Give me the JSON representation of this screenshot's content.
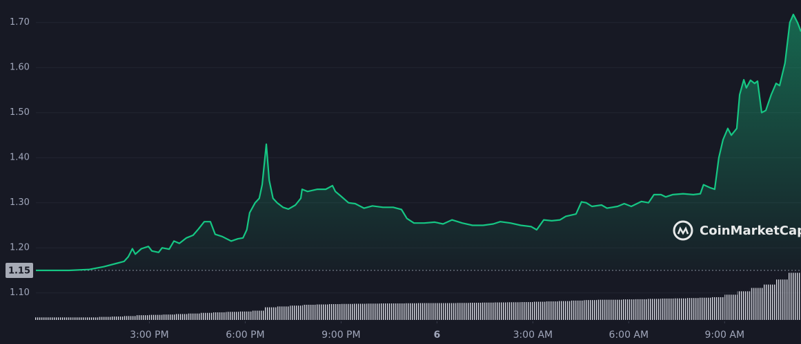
{
  "chart_data": {
    "type": "line",
    "watermark": "CoinMarketCap",
    "color": "#16c784",
    "grid": true,
    "reference": 1.15,
    "xlim": [
      11.45,
      35.39
    ],
    "ylim": [
      1.04,
      1.75
    ],
    "y2lim": [
      0,
      190
    ],
    "yticks": [
      {
        "value": 1.1,
        "label": "1.10"
      },
      {
        "value": 1.2,
        "label": "1.20"
      },
      {
        "value": 1.3,
        "label": "1.30"
      },
      {
        "value": 1.4,
        "label": "1.40"
      },
      {
        "value": 1.5,
        "label": "1.50"
      },
      {
        "value": 1.6,
        "label": "1.60"
      },
      {
        "value": 1.7,
        "label": "1.70"
      }
    ],
    "xticks": [
      {
        "value": 15,
        "label": "3:00 PM"
      },
      {
        "value": 18,
        "label": "6:00 PM"
      },
      {
        "value": 21,
        "label": "9:00 PM"
      },
      {
        "value": 24,
        "label": "6"
      },
      {
        "value": 27,
        "label": "3:00 AM"
      },
      {
        "value": 30,
        "label": "6:00 AM"
      },
      {
        "value": 33,
        "label": "9:00 AM"
      }
    ],
    "price": {
      "x": [
        11.45,
        12.49,
        13.13,
        13.57,
        14.0,
        14.21,
        14.34,
        14.47,
        14.56,
        14.75,
        14.97,
        15.08,
        15.29,
        15.4,
        15.62,
        15.77,
        15.94,
        16.16,
        16.37,
        16.54,
        16.72,
        16.91,
        17.06,
        17.28,
        17.56,
        17.77,
        17.93,
        18.05,
        18.14,
        18.31,
        18.44,
        18.53,
        18.66,
        18.75,
        18.87,
        19.0,
        19.18,
        19.35,
        19.57,
        19.74,
        19.78,
        19.95,
        20.26,
        20.52,
        20.73,
        20.82,
        20.99,
        21.23,
        21.44,
        21.72,
        21.98,
        22.31,
        22.63,
        22.89,
        23.06,
        23.28,
        23.6,
        23.93,
        24.19,
        24.47,
        24.79,
        25.11,
        25.44,
        25.76,
        25.98,
        26.3,
        26.62,
        26.95,
        27.12,
        27.34,
        27.59,
        27.85,
        28.03,
        28.35,
        28.52,
        28.67,
        28.85,
        29.15,
        29.32,
        29.65,
        29.86,
        30.08,
        30.4,
        30.62,
        30.79,
        31.01,
        31.16,
        31.37,
        31.7,
        32.02,
        32.24,
        32.34,
        32.56,
        32.69,
        32.82,
        32.95,
        33.1,
        33.21,
        33.38,
        33.47,
        33.6,
        33.68,
        33.81,
        33.94,
        34.03,
        34.16,
        34.29,
        34.46,
        34.61,
        34.72,
        34.89,
        35.04,
        35.15,
        35.28,
        35.39
      ],
      "values": [
        1.15,
        1.15,
        1.152,
        1.158,
        1.166,
        1.17,
        1.18,
        1.198,
        1.186,
        1.198,
        1.203,
        1.193,
        1.19,
        1.2,
        1.197,
        1.215,
        1.21,
        1.222,
        1.228,
        1.242,
        1.258,
        1.258,
        1.23,
        1.225,
        1.215,
        1.22,
        1.222,
        1.24,
        1.278,
        1.3,
        1.31,
        1.34,
        1.43,
        1.35,
        1.31,
        1.3,
        1.29,
        1.286,
        1.295,
        1.31,
        1.33,
        1.325,
        1.33,
        1.33,
        1.338,
        1.325,
        1.315,
        1.3,
        1.298,
        1.288,
        1.293,
        1.29,
        1.29,
        1.285,
        1.265,
        1.255,
        1.255,
        1.257,
        1.253,
        1.262,
        1.255,
        1.25,
        1.25,
        1.253,
        1.258,
        1.255,
        1.25,
        1.247,
        1.24,
        1.262,
        1.26,
        1.262,
        1.27,
        1.275,
        1.302,
        1.3,
        1.292,
        1.295,
        1.288,
        1.292,
        1.298,
        1.292,
        1.303,
        1.3,
        1.318,
        1.318,
        1.313,
        1.318,
        1.32,
        1.318,
        1.32,
        1.34,
        1.333,
        1.33,
        1.4,
        1.44,
        1.465,
        1.45,
        1.465,
        1.54,
        1.573,
        1.555,
        1.572,
        1.565,
        1.57,
        1.5,
        1.505,
        1.54,
        1.565,
        1.56,
        1.61,
        1.7,
        1.718,
        1.7,
        1.68
      ]
    },
    "volume": {
      "axis": "y2",
      "x": [
        11.6,
        12.0,
        12.4,
        12.8,
        13.2,
        13.6,
        14.0,
        14.4,
        14.8,
        15.2,
        15.6,
        16.0,
        16.4,
        16.8,
        17.2,
        17.6,
        18.0,
        18.4,
        18.8,
        19.2,
        19.6,
        20.0,
        20.4,
        20.8,
        21.2,
        21.6,
        22.0,
        22.4,
        22.8,
        23.2,
        23.6,
        24.0,
        24.4,
        24.8,
        25.2,
        25.6,
        26.0,
        26.4,
        26.8,
        27.2,
        27.6,
        28.0,
        28.4,
        28.8,
        29.2,
        29.6,
        30.0,
        30.4,
        30.8,
        31.2,
        31.6,
        32.0,
        32.4,
        32.8,
        33.2,
        33.6,
        34.0,
        34.4,
        34.8,
        35.2
      ],
      "values": [
        1.5,
        1.5,
        1.5,
        1.5,
        1.5,
        1.8,
        2,
        2.3,
        2.8,
        3,
        3.2,
        3.5,
        3.8,
        4.2,
        4.5,
        4.8,
        5,
        5.5,
        7.5,
        8,
        8.5,
        9,
        9.2,
        9.4,
        9.5,
        9.6,
        9.7,
        9.8,
        9.8,
        9.9,
        10,
        10,
        10,
        10.1,
        10.2,
        10.3,
        10.4,
        10.5,
        10.6,
        10.8,
        11,
        11.2,
        11.5,
        11.8,
        12,
        12,
        12.2,
        12.3,
        12.5,
        12.7,
        12.8,
        13,
        13.2,
        13.5,
        15,
        17,
        19,
        21,
        24,
        28
      ]
    }
  }
}
